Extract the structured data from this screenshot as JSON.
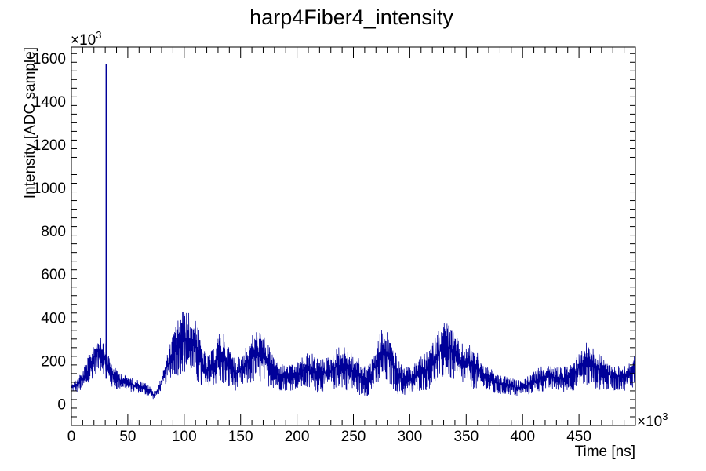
{
  "chart_data": {
    "type": "line",
    "title": "harp4Fiber4_intensity",
    "xlabel": "Time [ns]",
    "ylabel": "Intensity [ADC sample]",
    "x_multiplier": "×10",
    "x_multiplier_exp": "3",
    "y_multiplier": "×10",
    "y_multiplier_exp": "3",
    "xlim": [
      0,
      500
    ],
    "ylim": [
      -100,
      1650
    ],
    "x_ticks": [
      "0",
      "50",
      "100",
      "150",
      "200",
      "250",
      "300",
      "350",
      "400",
      "450"
    ],
    "y_ticks": [
      "0",
      "200",
      "400",
      "600",
      "800",
      "1000",
      "1200",
      "1400",
      "1600"
    ],
    "grid": false,
    "legend": "none",
    "line_color": "#000099",
    "spike": {
      "x": 31,
      "y": 1570
    },
    "series": [
      {
        "x": [
          0,
          5,
          10,
          15,
          20,
          25,
          28,
          30,
          33,
          38,
          45,
          50,
          55,
          60,
          65,
          70,
          73,
          77,
          82,
          88,
          95,
          100,
          105,
          110,
          115,
          120,
          125,
          130,
          135,
          140,
          145,
          150,
          155,
          160,
          165,
          170,
          175,
          180,
          185,
          190,
          195,
          200,
          205,
          210,
          215,
          220,
          225,
          230,
          235,
          240,
          245,
          250,
          255,
          260,
          265,
          270,
          275,
          280,
          285,
          290,
          295,
          300,
          305,
          310,
          315,
          320,
          325,
          330,
          335,
          340,
          345,
          350,
          355,
          360,
          365,
          370,
          375,
          380,
          385,
          390,
          395,
          400,
          405,
          410,
          415,
          420,
          425,
          430,
          435,
          440,
          445,
          450,
          455,
          460,
          465,
          470,
          475,
          480,
          485,
          490,
          495,
          500
        ],
        "min": [
          60,
          50,
          60,
          80,
          130,
          150,
          140,
          130,
          90,
          60,
          70,
          60,
          50,
          50,
          40,
          30,
          20,
          40,
          80,
          120,
          130,
          140,
          120,
          100,
          60,
          60,
          80,
          90,
          80,
          60,
          60,
          70,
          80,
          90,
          100,
          90,
          80,
          70,
          60,
          60,
          60,
          70,
          70,
          60,
          50,
          50,
          60,
          60,
          70,
          70,
          60,
          50,
          40,
          30,
          40,
          70,
          90,
          90,
          70,
          40,
          30,
          40,
          50,
          60,
          60,
          80,
          100,
          110,
          110,
          100,
          90,
          80,
          70,
          60,
          60,
          50,
          40,
          40,
          40,
          40,
          30,
          40,
          40,
          50,
          50,
          60,
          60,
          60,
          50,
          60,
          60,
          70,
          70,
          80,
          70,
          60,
          60,
          60,
          60,
          60,
          70,
          80
        ],
        "max": [
          100,
          120,
          160,
          220,
          290,
          330,
          310,
          290,
          230,
          170,
          140,
          130,
          120,
          110,
          100,
          80,
          60,
          80,
          170,
          290,
          410,
          440,
          420,
          400,
          300,
          220,
          250,
          320,
          340,
          270,
          210,
          220,
          280,
          320,
          350,
          320,
          270,
          220,
          190,
          180,
          180,
          190,
          220,
          240,
          230,
          210,
          210,
          230,
          260,
          270,
          260,
          230,
          210,
          180,
          190,
          270,
          350,
          340,
          280,
          200,
          170,
          170,
          190,
          220,
          240,
          280,
          340,
          390,
          380,
          320,
          280,
          280,
          270,
          240,
          200,
          170,
          150,
          130,
          130,
          120,
          110,
          110,
          130,
          150,
          170,
          180,
          180,
          170,
          170,
          180,
          200,
          250,
          290,
          280,
          250,
          220,
          200,
          180,
          180,
          180,
          200,
          230
        ]
      }
    ]
  }
}
